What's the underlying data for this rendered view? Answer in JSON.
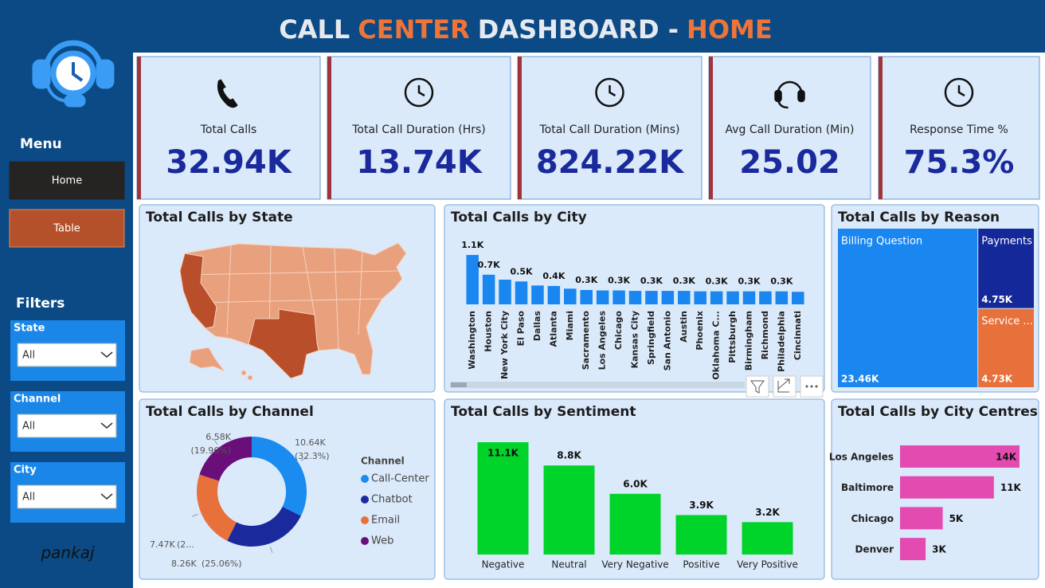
{
  "header": {
    "title_parts": [
      {
        "text": "CALL",
        "color": "#e6e9ee"
      },
      {
        "text": "CENTER",
        "color": "#ef7437"
      },
      {
        "text": "DASHBOARD -",
        "color": "#e6e9ee"
      },
      {
        "text": "HOME",
        "color": "#ef7437"
      }
    ]
  },
  "sidebar": {
    "menu_title": "Menu",
    "menu_items": [
      "Home",
      "Table"
    ],
    "filters_title": "Filters",
    "filters": [
      {
        "label": "State",
        "value": "All"
      },
      {
        "label": "Channel",
        "value": "All"
      },
      {
        "label": "City",
        "value": "All"
      }
    ],
    "signature": "pankaj"
  },
  "kpis": [
    {
      "label": "Total Calls",
      "value": "32.94K"
    },
    {
      "label": "Total Call Duration (Hrs)",
      "value": "13.74K"
    },
    {
      "label": "Total Call Duration (Mins)",
      "value": "824.22K"
    },
    {
      "label": "Avg Call Duration (Min)",
      "value": "25.02"
    },
    {
      "label": "Response Time %",
      "value": "75.3%"
    }
  ],
  "chart_data": [
    {
      "type": "map",
      "title": "Total Calls by State"
    },
    {
      "type": "bar",
      "title": "Total Calls by City",
      "color": "#1a86f0",
      "categories": [
        "Washington",
        "Houston",
        "New York City",
        "El Paso",
        "Dallas",
        "Atlanta",
        "Miami",
        "Sacramento",
        "Los Angeles",
        "Chicago",
        "Kansas City",
        "Springfield",
        "San Antonio",
        "Austin",
        "Phoenix",
        "Oklahoma C...",
        "Pittsburgh",
        "Birmingham",
        "Richmond",
        "Philadelphia",
        "Cincinnati"
      ],
      "values": [
        1100,
        660,
        550,
        510,
        420,
        410,
        350,
        320,
        310,
        310,
        300,
        300,
        300,
        300,
        290,
        290,
        290,
        290,
        290,
        290,
        280
      ],
      "value_labels": [
        "1.1K",
        "0.7K",
        null,
        "0.5K",
        null,
        "0.4K",
        null,
        "0.3K",
        null,
        "0.3K",
        null,
        "0.3K",
        null,
        "0.3K",
        null,
        "0.3K",
        null,
        "0.3K",
        null,
        "0.3K",
        null
      ]
    },
    {
      "type": "treemap",
      "title": "Total Calls by Reason",
      "categories": [
        "Billing Question",
        "Payments",
        "Service ..."
      ],
      "values": [
        23460,
        4750,
        4730
      ],
      "value_labels": [
        "23.46K",
        "4.75K",
        "4.73K"
      ],
      "colors": [
        "#1a86f0",
        "#14289a",
        "#e8703a"
      ]
    },
    {
      "type": "donut",
      "title": "Total Calls by Channel",
      "legend_title": "Channel",
      "categories": [
        "Call-Center",
        "Chatbot",
        "Email",
        "Web"
      ],
      "values": [
        10640,
        8260,
        7470,
        6580
      ],
      "value_labels": [
        "10.64K",
        "8.26K",
        "7.47K",
        "6.58K"
      ],
      "percent_labels": [
        "(32.3%)",
        "(25.06%)",
        "(2...",
        "(19.96%)"
      ],
      "colors": [
        "#1a8cf0",
        "#1a2a9c",
        "#e8703a",
        "#6a0f7a"
      ]
    },
    {
      "type": "bar",
      "title": "Total Calls by Sentiment",
      "color": "#00d42a",
      "categories": [
        "Negative",
        "Neutral",
        "Very Negative",
        "Positive",
        "Very Positive"
      ],
      "values": [
        11100,
        8800,
        6000,
        3900,
        3200
      ],
      "value_labels": [
        "11.1K",
        "8.8K",
        "6.0K",
        "3.9K",
        "3.2K"
      ]
    },
    {
      "type": "hbar",
      "title": "Total Calls by City Centres",
      "color": "#e34bb0",
      "categories": [
        "Los Angeles",
        "Baltimore",
        "Chicago",
        "Denver"
      ],
      "values": [
        14000,
        11000,
        5000,
        3000
      ],
      "value_labels": [
        "14K",
        "11K",
        "5K",
        "3K"
      ]
    }
  ]
}
